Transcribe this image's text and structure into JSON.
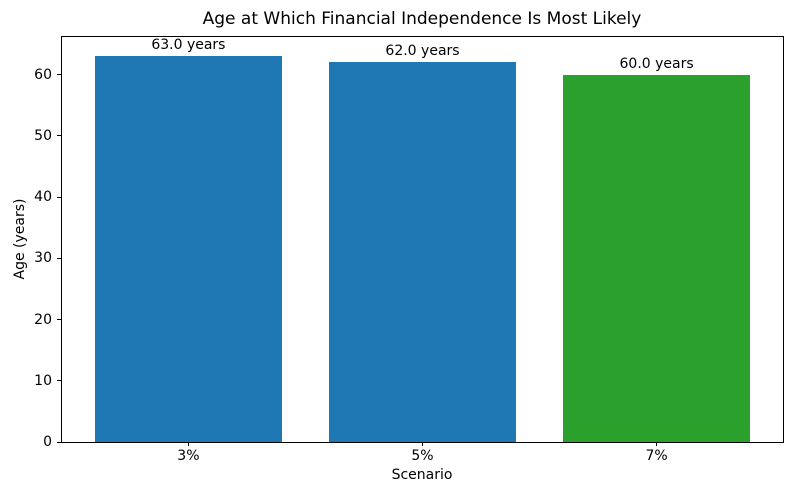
{
  "chart_data": {
    "type": "bar",
    "title": "Age at Which Financial Independence Is Most Likely",
    "xlabel": "Scenario",
    "ylabel": "Age (years)",
    "categories": [
      "3%",
      "5%",
      "7%"
    ],
    "values": [
      63.0,
      62.0,
      60.0
    ],
    "bar_labels": [
      "63.0 years",
      "62.0 years",
      "60.0 years"
    ],
    "bar_colors": [
      "#1f77b4",
      "#1f77b4",
      "#2ca02c"
    ],
    "yticks": [
      0,
      10,
      20,
      30,
      40,
      50,
      60
    ],
    "ylim": [
      0,
      66.15
    ],
    "xlim": [
      -0.54,
      2.54
    ],
    "bar_width_units": 0.8,
    "grid": false,
    "legend_position": "none",
    "background_color": "#ffffff",
    "text_color": "#000000"
  }
}
